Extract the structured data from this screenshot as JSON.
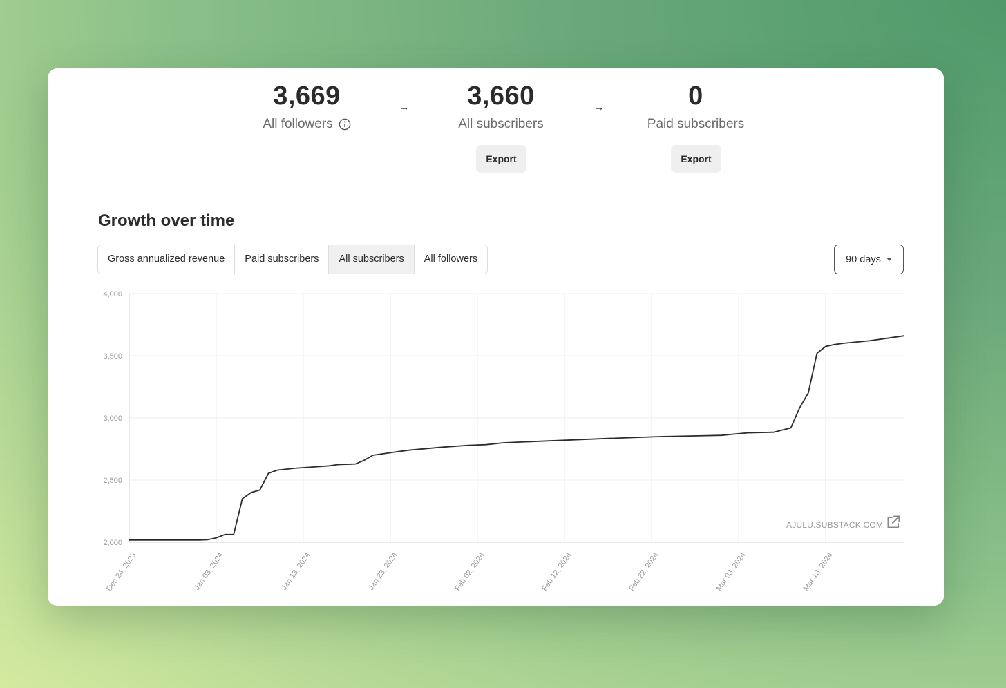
{
  "stats": [
    {
      "value": "3,669",
      "label": "All followers",
      "icon": "info-icon"
    },
    {
      "value": "3,660",
      "label": "All subscribers",
      "action": "Export"
    },
    {
      "value": "0",
      "label": "Paid subscribers",
      "action": "Export"
    }
  ],
  "section_title": "Growth over time",
  "tabs": [
    {
      "label": "Gross annualized revenue",
      "active": false
    },
    {
      "label": "Paid subscribers",
      "active": false
    },
    {
      "label": "All subscribers",
      "active": true
    },
    {
      "label": "All followers",
      "active": false
    }
  ],
  "range_select": {
    "value": "90 days"
  },
  "watermark": {
    "text": "AJULU.SUBSTACK.COM",
    "icon": "external-link-icon"
  },
  "chart_data": {
    "type": "line",
    "title": "",
    "xlabel": "",
    "ylabel": "",
    "ylim": [
      2000,
      4000
    ],
    "y_ticks": [
      "4,000",
      "3,500",
      "3,000",
      "2,500",
      "2,000"
    ],
    "x_ticks": [
      "Dec 24, 2023",
      "Jan 03, 2024",
      "Jan 13, 2024",
      "Jan 23, 2024",
      "Feb 02, 2024",
      "Feb 12, 2024",
      "Feb 22, 2024",
      "Mar 03, 2024",
      "Mar 13, 2024"
    ],
    "grid": true,
    "series": [
      {
        "color": "#2b2b2b",
        "x": [
          "2023-12-24",
          "2023-12-29",
          "2024-01-01",
          "2024-01-02",
          "2024-01-03",
          "2024-01-04",
          "2024-01-05",
          "2024-01-06",
          "2024-01-07",
          "2024-01-08",
          "2024-01-09",
          "2024-01-10",
          "2024-01-12",
          "2024-01-14",
          "2024-01-16",
          "2024-01-17",
          "2024-01-19",
          "2024-01-20",
          "2024-01-21",
          "2024-01-23",
          "2024-01-25",
          "2024-01-29",
          "2024-02-01",
          "2024-02-03",
          "2024-02-05",
          "2024-02-10",
          "2024-02-17",
          "2024-02-23",
          "2024-03-01",
          "2024-03-04",
          "2024-03-07",
          "2024-03-09",
          "2024-03-10",
          "2024-03-11",
          "2024-03-12",
          "2024-03-13",
          "2024-03-14",
          "2024-03-15",
          "2024-03-18",
          "2024-03-20",
          "2024-03-22"
        ],
        "y": [
          2018,
          2018,
          2018,
          2020,
          2035,
          2062,
          2062,
          2350,
          2400,
          2420,
          2555,
          2580,
          2595,
          2605,
          2615,
          2625,
          2630,
          2660,
          2700,
          2720,
          2740,
          2765,
          2780,
          2785,
          2800,
          2815,
          2835,
          2850,
          2860,
          2880,
          2885,
          2920,
          3080,
          3200,
          3520,
          3575,
          3590,
          3600,
          3620,
          3640,
          3660
        ]
      }
    ]
  }
}
